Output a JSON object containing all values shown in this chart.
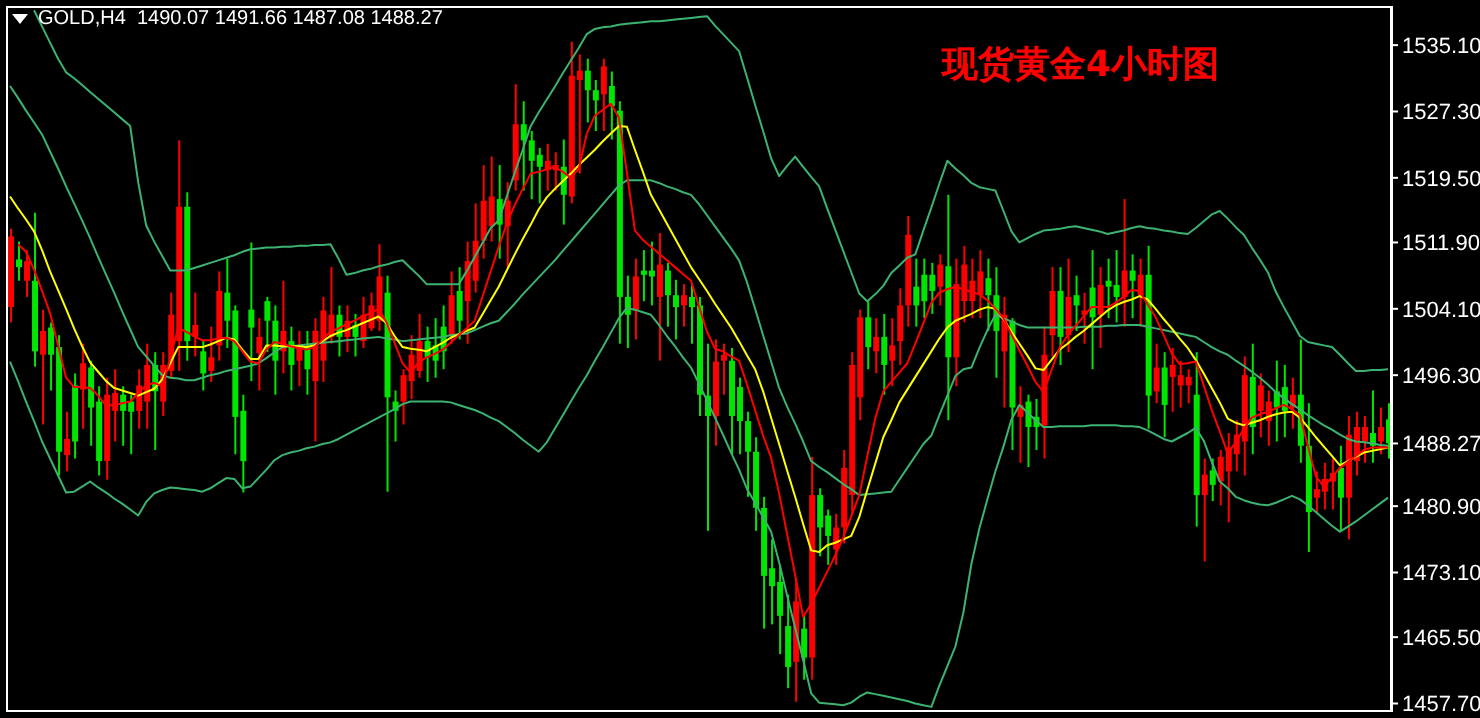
{
  "chart_data": {
    "type": "candlestick",
    "title": "现货黄金4小时图",
    "subtitle": "GOLD,H4  1490.07 1491.66 1487.08 1488.27",
    "categories": [
      null,
      null,
      null,
      null,
      null,
      null,
      null,
      null,
      null,
      null,
      null,
      null,
      null,
      null,
      null,
      null,
      null,
      null,
      null,
      null,
      null,
      null,
      null,
      null,
      null,
      null,
      null,
      null,
      null,
      null,
      null,
      null,
      null,
      null,
      null,
      null,
      null,
      null,
      null,
      null,
      null,
      null,
      null,
      null,
      null,
      null,
      null,
      null,
      null,
      null,
      null,
      null,
      null,
      null,
      null,
      null,
      null,
      null,
      null,
      null,
      null,
      null,
      null,
      null,
      null,
      null,
      null,
      null,
      null,
      null,
      null,
      null,
      null,
      null,
      null,
      null,
      null,
      null,
      null,
      null,
      null,
      null,
      null,
      null,
      null,
      null,
      null,
      null,
      null,
      null,
      null,
      null,
      null,
      null,
      null,
      null,
      null,
      null,
      null,
      null,
      null,
      null,
      null,
      null,
      null,
      null,
      null,
      null,
      null,
      null,
      null,
      null,
      null,
      null,
      null,
      null,
      null,
      null,
      null,
      null,
      null,
      null,
      null,
      null,
      null,
      null,
      null,
      null,
      null,
      null,
      null,
      null,
      null,
      null,
      null,
      null,
      null,
      null,
      null,
      null,
      null,
      null,
      null,
      null,
      null,
      null,
      null,
      null,
      null,
      null,
      null,
      null,
      null,
      null,
      null,
      null,
      null,
      null,
      null,
      null,
      null,
      null,
      null,
      null,
      null,
      null,
      null,
      null,
      null,
      null,
      null,
      null,
      null
    ],
    "ohlc": [
      [
        1512.6,
        1513.5,
        1502.5,
        1504.3
      ],
      [
        1509.0,
        1512.0,
        1507.4,
        1509.9
      ],
      [
        1509.7,
        1511.0,
        1505.5,
        1507.4
      ],
      [
        1499.1,
        1515.4,
        1497.3,
        1507.4
      ],
      [
        1501.5,
        1504.0,
        1490.5,
        1498.7
      ],
      [
        1498.7,
        1502.5,
        1494.5,
        1501.9
      ],
      [
        1487.3,
        1501.0,
        1484.5,
        1499.6
      ],
      [
        1488.8,
        1492.0,
        1485.0,
        1486.9
      ],
      [
        1488.5,
        1496.5,
        1486.5,
        1495.1
      ],
      [
        1497.7,
        1500.0,
        1490.0,
        1494.6
      ],
      [
        1492.5,
        1498.0,
        1488.0,
        1497.2
      ],
      [
        1486.2,
        1495.0,
        1484.5,
        1493.2
      ],
      [
        1494.0,
        1496.0,
        1484.0,
        1486.2
      ],
      [
        1494.2,
        1497.0,
        1488.5,
        1492.1
      ],
      [
        1492.1,
        1495.0,
        1488.0,
        1494.0
      ],
      [
        1492.0,
        1494.0,
        1487.0,
        1493.2
      ],
      [
        1495.1,
        1497.0,
        1490.0,
        1492.1
      ],
      [
        1497.5,
        1500.0,
        1490.0,
        1493.2
      ],
      [
        1494.4,
        1499.0,
        1487.5,
        1497.5
      ],
      [
        1497.5,
        1499.0,
        1491.5,
        1493.2
      ],
      [
        1503.4,
        1506.0,
        1496.0,
        1496.8
      ],
      [
        1516.1,
        1523.9,
        1496.8,
        1500.3
      ],
      [
        1500.3,
        1517.8,
        1498.0,
        1516.1
      ],
      [
        1502.2,
        1506.0,
        1498.5,
        1500.8
      ],
      [
        1496.5,
        1500.5,
        1494.5,
        1499.1
      ],
      [
        1498.4,
        1502.0,
        1495.5,
        1496.8
      ],
      [
        1506.2,
        1508.5,
        1498.0,
        1499.8
      ],
      [
        1502.7,
        1510.0,
        1499.5,
        1506.0
      ],
      [
        1491.4,
        1504.5,
        1487.0,
        1503.9
      ],
      [
        1486.2,
        1494.0,
        1482.5,
        1492.1
      ],
      [
        1501.9,
        1511.9,
        1495.6,
        1504.0
      ],
      [
        1500.8,
        1503.0,
        1494.5,
        1498.9
      ],
      [
        1502.7,
        1505.5,
        1499.0,
        1505.0
      ],
      [
        1498.0,
        1504.5,
        1494.0,
        1502.7
      ],
      [
        1501.5,
        1507.4,
        1496.5,
        1499.1
      ],
      [
        1497.5,
        1502.0,
        1494.5,
        1500.3
      ],
      [
        1499.6,
        1501.5,
        1495.0,
        1498.0
      ],
      [
        1497.0,
        1501.5,
        1494.0,
        1499.6
      ],
      [
        1501.5,
        1503.0,
        1488.5,
        1495.6
      ],
      [
        1503.9,
        1505.5,
        1495.5,
        1498.0
      ],
      [
        1503.4,
        1509.0,
        1500.0,
        1500.8
      ],
      [
        1500.8,
        1504.5,
        1498.5,
        1503.4
      ],
      [
        1502.7,
        1504.5,
        1499.0,
        1500.8
      ],
      [
        1500.8,
        1503.5,
        1498.5,
        1502.2
      ],
      [
        1503.4,
        1505.5,
        1499.5,
        1500.3
      ],
      [
        1504.5,
        1506.0,
        1501.5,
        1501.8
      ],
      [
        1507.9,
        1511.7,
        1501.5,
        1502.7
      ],
      [
        1493.7,
        1508.0,
        1482.6,
        1506.0
      ],
      [
        1492.1,
        1494.5,
        1488.5,
        1493.2
      ],
      [
        1496.3,
        1497.0,
        1490.5,
        1493.2
      ],
      [
        1498.7,
        1501.0,
        1493.5,
        1495.6
      ],
      [
        1500.3,
        1503.5,
        1496.0,
        1496.8
      ],
      [
        1498.4,
        1502.0,
        1495.5,
        1500.3
      ],
      [
        1498.0,
        1503.0,
        1496.0,
        1499.8
      ],
      [
        1499.1,
        1504.5,
        1497.0,
        1502.0
      ],
      [
        1505.7,
        1508.5,
        1500.0,
        1501.0
      ],
      [
        1502.7,
        1509.0,
        1500.5,
        1506.2
      ],
      [
        1509.7,
        1512.0,
        1500.0,
        1505.0
      ],
      [
        1512.1,
        1516.5,
        1506.0,
        1507.4
      ],
      [
        1516.8,
        1521.0,
        1510.0,
        1512.1
      ],
      [
        1517.3,
        1522.0,
        1512.0,
        1513.8
      ],
      [
        1514.0,
        1521.0,
        1510.0,
        1517.0
      ],
      [
        1516.8,
        1519.0,
        1509.0,
        1513.8
      ],
      [
        1525.8,
        1530.5,
        1518.0,
        1519.2
      ],
      [
        1523.9,
        1528.5,
        1518.0,
        1525.8
      ],
      [
        1521.5,
        1525.0,
        1517.0,
        1523.9
      ],
      [
        1520.8,
        1523.0,
        1516.5,
        1522.2
      ],
      [
        1521.5,
        1523.5,
        1518.0,
        1520.4
      ],
      [
        1521.0,
        1522.5,
        1518.0,
        1520.4
      ],
      [
        1517.5,
        1524.0,
        1514.0,
        1520.8
      ],
      [
        1531.5,
        1535.5,
        1516.5,
        1517.3
      ],
      [
        1532.1,
        1534.0,
        1520.0,
        1531.0
      ],
      [
        1529.8,
        1533.5,
        1526.0,
        1532.1
      ],
      [
        1528.6,
        1531.0,
        1525.0,
        1529.8
      ],
      [
        1532.6,
        1533.5,
        1525.0,
        1529.3
      ],
      [
        1527.9,
        1532.0,
        1524.0,
        1530.3
      ],
      [
        1505.5,
        1528.5,
        1500.0,
        1527.4
      ],
      [
        1503.4,
        1508.0,
        1499.5,
        1505.5
      ],
      [
        1507.9,
        1510.0,
        1500.5,
        1503.9
      ],
      [
        1508.1,
        1511.0,
        1505.0,
        1508.6
      ],
      [
        1507.9,
        1512.0,
        1504.5,
        1508.6
      ],
      [
        1509.3,
        1513.0,
        1498.0,
        1505.5
      ],
      [
        1505.7,
        1509.5,
        1502.0,
        1508.6
      ],
      [
        1504.3,
        1507.5,
        1500.5,
        1505.7
      ],
      [
        1505.7,
        1507.0,
        1502.0,
        1504.5
      ],
      [
        1504.3,
        1507.0,
        1500.0,
        1505.5
      ],
      [
        1494.0,
        1505.5,
        1491.5,
        1504.5
      ],
      [
        1491.5,
        1500.0,
        1478.0,
        1493.9
      ],
      [
        1497.9,
        1500.5,
        1488.0,
        1491.5
      ],
      [
        1498.7,
        1500.0,
        1494.0,
        1498.0
      ],
      [
        1491.5,
        1499.5,
        1487.0,
        1498.0
      ],
      [
        1490.9,
        1496.0,
        1487.0,
        1494.9
      ],
      [
        1487.3,
        1492.0,
        1482.0,
        1490.9
      ],
      [
        1480.7,
        1489.0,
        1478.0,
        1487.3
      ],
      [
        1472.7,
        1482.0,
        1466.5,
        1480.7
      ],
      [
        1471.5,
        1477.0,
        1467.0,
        1473.6
      ],
      [
        1468.0,
        1474.0,
        1463.5,
        1472.0
      ],
      [
        1462.0,
        1470.5,
        1459.5,
        1466.8
      ],
      [
        1469.7,
        1472.5,
        1457.9,
        1462.6
      ],
      [
        1463.1,
        1468.0,
        1460.5,
        1466.5
      ],
      [
        1482.2,
        1486.7,
        1460.5,
        1463.1
      ],
      [
        1478.4,
        1483.0,
        1475.0,
        1482.2
      ],
      [
        1477.4,
        1480.5,
        1474.0,
        1479.8
      ],
      [
        1478.4,
        1480.0,
        1474.0,
        1475.8
      ],
      [
        1485.4,
        1487.5,
        1476.5,
        1478.4
      ],
      [
        1497.5,
        1499.0,
        1480.0,
        1482.2
      ],
      [
        1503.1,
        1504.0,
        1491.0,
        1493.7
      ],
      [
        1499.6,
        1505.0,
        1497.0,
        1503.1
      ],
      [
        1500.8,
        1503.0,
        1496.5,
        1499.1
      ],
      [
        1497.5,
        1503.5,
        1494.0,
        1500.8
      ],
      [
        1499.8,
        1503.0,
        1495.0,
        1498.0
      ],
      [
        1504.5,
        1506.5,
        1497.5,
        1500.3
      ],
      [
        1512.8,
        1515.0,
        1502.0,
        1504.5
      ],
      [
        1504.5,
        1510.0,
        1502.0,
        1506.7
      ],
      [
        1505.0,
        1510.0,
        1503.0,
        1508.1
      ],
      [
        1506.2,
        1509.5,
        1503.5,
        1508.1
      ],
      [
        1509.3,
        1510.5,
        1504.5,
        1506.7
      ],
      [
        1498.4,
        1517.5,
        1491.0,
        1509.1
      ],
      [
        1507.0,
        1510.0,
        1495.0,
        1498.4
      ],
      [
        1509.3,
        1511.5,
        1502.5,
        1505.0
      ],
      [
        1507.4,
        1510.0,
        1503.0,
        1505.0
      ],
      [
        1508.5,
        1511.0,
        1503.0,
        1505.7
      ],
      [
        1505.7,
        1510.0,
        1501.5,
        1507.7
      ],
      [
        1501.5,
        1509.0,
        1496.0,
        1505.7
      ],
      [
        1503.4,
        1505.5,
        1492.5,
        1499.1
      ],
      [
        1492.5,
        1503.0,
        1487.5,
        1502.7
      ],
      [
        1492.8,
        1495.0,
        1486.0,
        1491.4
      ],
      [
        1490.2,
        1494.0,
        1485.5,
        1493.2
      ],
      [
        1490.2,
        1493.5,
        1487.5,
        1491.4
      ],
      [
        1498.7,
        1502.0,
        1486.5,
        1490.4
      ],
      [
        1506.2,
        1509.0,
        1498.5,
        1501.0
      ],
      [
        1500.8,
        1509.0,
        1497.5,
        1506.2
      ],
      [
        1505.5,
        1510.0,
        1499.0,
        1501.0
      ],
      [
        1504.5,
        1508.0,
        1501.5,
        1505.7
      ],
      [
        1503.9,
        1506.0,
        1500.0,
        1503.4
      ],
      [
        1503.1,
        1511.0,
        1497.0,
        1506.6
      ],
      [
        1506.9,
        1509.0,
        1499.5,
        1503.4
      ],
      [
        1506.7,
        1510.0,
        1503.0,
        1507.4
      ],
      [
        1505.5,
        1511.0,
        1502.5,
        1506.9
      ],
      [
        1508.6,
        1517.0,
        1502.0,
        1505.5
      ],
      [
        1507.4,
        1510.5,
        1503.0,
        1508.6
      ],
      [
        1508.1,
        1510.0,
        1502.0,
        1505.7
      ],
      [
        1493.9,
        1511.5,
        1490.0,
        1508.1
      ],
      [
        1497.2,
        1500.0,
        1493.0,
        1494.4
      ],
      [
        1492.8,
        1499.0,
        1489.0,
        1497.2
      ],
      [
        1497.5,
        1499.5,
        1492.0,
        1496.1
      ],
      [
        1496.3,
        1498.0,
        1492.5,
        1495.1
      ],
      [
        1496.1,
        1497.0,
        1493.0,
        1495.1
      ],
      [
        1482.2,
        1499.0,
        1478.5,
        1494.0
      ],
      [
        1484.6,
        1486.5,
        1474.4,
        1482.2
      ],
      [
        1483.4,
        1486.5,
        1481.5,
        1485.1
      ],
      [
        1486.7,
        1487.5,
        1481.0,
        1483.8
      ],
      [
        1487.8,
        1489.5,
        1479.0,
        1485.0
      ],
      [
        1489.3,
        1491.0,
        1485.0,
        1487.0
      ],
      [
        1496.3,
        1498.5,
        1484.5,
        1488.5
      ],
      [
        1490.2,
        1500.0,
        1487.0,
        1496.1
      ],
      [
        1495.1,
        1496.5,
        1489.0,
        1492.1
      ],
      [
        1493.2,
        1494.5,
        1488.0,
        1490.9
      ],
      [
        1492.5,
        1498.0,
        1488.5,
        1494.4
      ],
      [
        1492.1,
        1497.5,
        1489.0,
        1494.9
      ],
      [
        1494.0,
        1496.0,
        1490.0,
        1492.5
      ],
      [
        1488.0,
        1500.5,
        1486.0,
        1494.0
      ],
      [
        1480.2,
        1493.0,
        1475.5,
        1488.0
      ],
      [
        1482.9,
        1485.0,
        1480.0,
        1481.9
      ],
      [
        1484.1,
        1486.0,
        1480.5,
        1482.6
      ],
      [
        1484.8,
        1486.5,
        1480.5,
        1483.8
      ],
      [
        1481.9,
        1488.0,
        1478.0,
        1485.4
      ],
      [
        1489.3,
        1491.5,
        1477.0,
        1481.9
      ],
      [
        1490.2,
        1492.0,
        1484.5,
        1486.2
      ],
      [
        1490.2,
        1491.5,
        1486.0,
        1488.5
      ],
      [
        1488.0,
        1494.5,
        1486.0,
        1489.5
      ],
      [
        1490.2,
        1492.5,
        1487.0,
        1488.5
      ],
      [
        1488.3,
        1493.0,
        1486.5,
        1491.1
      ]
    ],
    "series": [
      {
        "type": "line",
        "color": "#3cb371",
        "values": [
          null,
          null,
          null,
          1539.2,
          1537.3,
          1535.4,
          1533.5,
          1531.9,
          1531.2,
          1530.4,
          1529.6,
          1528.8,
          1528.0,
          1527.2,
          1526.4,
          1525.6,
          1519.0,
          1513.9,
          1512.0,
          1510.3,
          1508.6,
          1508.6,
          1508.6,
          1508.9,
          1509.2,
          1509.5,
          1509.8,
          1510.1,
          1510.4,
          1510.8,
          1511.1,
          1511.2,
          1511.3,
          1511.3,
          1511.4,
          1511.4,
          1511.5,
          1511.5,
          1511.6,
          1511.6,
          1511.7,
          1510.0,
          1508.1,
          1508.3,
          1508.6,
          1508.8,
          1509.1,
          1509.3,
          1509.6,
          1509.8,
          1508.9,
          1508.0,
          1507.0,
          1507.0,
          1507.0,
          1507.0,
          1507.0,
          1508.5,
          1510.2,
          1511.9,
          1513.6,
          1514.5,
          1517.3,
          1520.1,
          1522.8,
          1525.6,
          1527.2,
          1528.7,
          1530.2,
          1531.8,
          1533.3,
          1534.8,
          1536.4,
          1537.0,
          1537.2,
          1537.3,
          1537.5,
          1537.6,
          1537.7,
          1537.8,
          1537.9,
          1537.9,
          1538.0,
          1538.1,
          1538.2,
          1538.3,
          1538.4,
          1538.5,
          1537.4,
          1536.4,
          1535.4,
          1534.4,
          1531.3,
          1528.1,
          1525.0,
          1521.8,
          1519.7,
          1520.9,
          1522.0,
          1520.8,
          1519.6,
          1518.5,
          1515.9,
          1513.4,
          1510.9,
          1508.4,
          1505.9,
          1505.0,
          1505.8,
          1506.8,
          1508.3,
          1509.2,
          1510.1,
          1510.5,
          1513.3,
          1516.0,
          1518.8,
          1521.5,
          1520.6,
          1519.8,
          1518.9,
          1518.4,
          1518.2,
          1518.0,
          1515.6,
          1513.2,
          1511.9,
          1512.4,
          1512.9,
          1513.3,
          1513.4,
          1513.5,
          1513.7,
          1513.8,
          1513.6,
          1513.4,
          1513.2,
          1512.9,
          1513.1,
          1513.3,
          1513.6,
          1513.8,
          1513.6,
          1513.5,
          1513.3,
          1513.2,
          1513.0,
          1512.9,
          1513.6,
          1514.4,
          1515.2,
          1515.6,
          1514.7,
          1513.7,
          1512.8,
          1511.3,
          1509.9,
          1508.4,
          1506.1,
          1504.3,
          1502.6,
          1500.9,
          1500.2,
          1500.0,
          1499.8,
          1499.6,
          1498.7,
          1497.7,
          1496.8,
          1496.8,
          1496.9,
          1496.9,
          1497.0
        ]
      },
      {
        "type": "line",
        "color": "#3cb371",
        "values": [
          1530.3,
          1528.9,
          1527.4,
          1526.0,
          1524.6,
          1522.6,
          1520.6,
          1518.5,
          1516.5,
          1514.5,
          1512.4,
          1510.2,
          1508.1,
          1506.0,
          1503.8,
          1501.7,
          1499.6,
          1498.5,
          1497.4,
          1496.3,
          1496.0,
          1495.9,
          1495.7,
          1495.7,
          1496.0,
          1496.3,
          1496.5,
          1496.8,
          1497.0,
          1497.2,
          1497.4,
          1497.7,
          1498.3,
          1499.0,
          1499.6,
          1499.7,
          1499.8,
          1499.9,
          1500.0,
          1500.1,
          1500.2,
          1500.3,
          1500.4,
          1500.5,
          1500.6,
          1500.7,
          1500.8,
          1500.6,
          1500.5,
          1500.3,
          1500.4,
          1500.5,
          1500.6,
          1500.7,
          1500.8,
          1501.0,
          1501.1,
          1501.2,
          1501.6,
          1502.0,
          1502.4,
          1502.7,
          1503.7,
          1504.7,
          1505.8,
          1506.8,
          1507.8,
          1508.8,
          1509.8,
          1510.9,
          1512.0,
          1513.1,
          1514.2,
          1515.3,
          1516.4,
          1517.5,
          1518.6,
          1519.2,
          1519.2,
          1519.2,
          1519.2,
          1518.9,
          1518.5,
          1518.2,
          1517.8,
          1517.5,
          1516.4,
          1515.1,
          1513.8,
          1512.5,
          1511.2,
          1509.8,
          1507.2,
          1504.1,
          1501.0,
          1497.9,
          1494.8,
          1492.6,
          1490.6,
          1488.5,
          1486.2,
          1485.5,
          1484.9,
          1484.2,
          1483.5,
          1482.9,
          1482.2,
          1482.3,
          1482.4,
          1482.5,
          1482.6,
          1484.0,
          1485.4,
          1486.8,
          1488.2,
          1489.2,
          1491.6,
          1493.9,
          1496.2,
          1497.0,
          1497.2,
          1499.5,
          1501.6,
          1503.4,
          1503.0,
          1502.6,
          1502.2,
          1501.9,
          1501.9,
          1501.9,
          1501.9,
          1501.9,
          1501.9,
          1501.9,
          1502.0,
          1502.0,
          1502.0,
          1502.1,
          1502.1,
          1502.2,
          1502.2,
          1502.2,
          1502.0,
          1501.8,
          1501.6,
          1501.4,
          1501.2,
          1501.0,
          1500.8,
          1500.2,
          1499.6,
          1499.1,
          1498.7,
          1498.0,
          1497.4,
          1496.7,
          1496.0,
          1495.2,
          1494.3,
          1493.6,
          1492.9,
          1492.3,
          1491.6,
          1491.0,
          1490.4,
          1489.9,
          1489.3,
          1488.8,
          1488.5,
          1488.4,
          1488.3,
          1488.1,
          1488.0
        ]
      },
      {
        "type": "line",
        "color": "#3cb371",
        "values": [
          1497.9,
          1495.6,
          1493.2,
          1490.9,
          1488.5,
          1486.5,
          1484.5,
          1482.5,
          1482.6,
          1483.2,
          1483.8,
          1483.1,
          1482.5,
          1481.8,
          1481.2,
          1480.5,
          1479.8,
          1481.4,
          1482.4,
          1482.8,
          1483.1,
          1483.0,
          1482.9,
          1482.8,
          1482.6,
          1483.0,
          1483.6,
          1484.2,
          1484.1,
          1483.0,
          1483.2,
          1484.2,
          1485.2,
          1486.3,
          1486.9,
          1487.2,
          1487.4,
          1487.7,
          1487.9,
          1488.2,
          1488.4,
          1488.8,
          1489.3,
          1489.8,
          1490.3,
          1490.8,
          1491.3,
          1491.8,
          1492.3,
          1492.9,
          1493.2,
          1493.2,
          1493.2,
          1493.2,
          1493.2,
          1493.1,
          1492.8,
          1492.5,
          1492.2,
          1491.8,
          1491.3,
          1490.9,
          1490.2,
          1489.5,
          1488.7,
          1488.0,
          1487.3,
          1488.4,
          1490.0,
          1491.6,
          1493.2,
          1494.8,
          1496.3,
          1498.0,
          1499.6,
          1501.3,
          1503.0,
          1504.2,
          1504.0,
          1503.7,
          1503.4,
          1502.2,
          1500.9,
          1499.7,
          1498.4,
          1497.2,
          1495.3,
          1493.3,
          1491.3,
          1489.3,
          1487.2,
          1485.2,
          1482.9,
          1481.3,
          1479.6,
          1477.9,
          1474.3,
          1470.4,
          1466.6,
          1462.8,
          1458.9,
          1457.8,
          1457.7,
          1457.6,
          1457.5,
          1457.8,
          1458.5,
          1459.0,
          1458.8,
          1458.6,
          1458.4,
          1458.2,
          1458.0,
          1457.7,
          1457.5,
          1457.3,
          1459.8,
          1462.1,
          1464.4,
          1468.4,
          1474.1,
          1478.3,
          1481.7,
          1485.0,
          1487.9,
          1491.1,
          1492.8,
          1491.9,
          1491.0,
          1490.2,
          1490.2,
          1490.3,
          1490.3,
          1490.3,
          1490.3,
          1490.4,
          1490.4,
          1490.4,
          1490.4,
          1490.3,
          1490.3,
          1490.2,
          1489.8,
          1489.3,
          1488.8,
          1488.5,
          1489.0,
          1489.5,
          1490.1,
          1488.6,
          1486.1,
          1483.8,
          1483.0,
          1482.0,
          1481.6,
          1481.3,
          1481.1,
          1481.0,
          1481.3,
          1481.7,
          1482.1,
          1481.7,
          1481.0,
          1480.2,
          1479.4,
          1478.6,
          1477.9,
          1478.5,
          1479.1,
          1479.8,
          1480.5,
          1481.2,
          1481.9
        ]
      },
      {
        "type": "line",
        "color": "#ffff00",
        "values": [
          1517.3,
          1515.9,
          1514.6,
          1513.2,
          1511.0,
          1508.5,
          1506.3,
          1504.1,
          1501.8,
          1499.7,
          1497.8,
          1496.7,
          1495.6,
          1494.8,
          1494.5,
          1494.2,
          1493.9,
          1494.3,
          1494.7,
          1495.8,
          1497.7,
          1499.6,
          1499.6,
          1499.6,
          1499.6,
          1499.9,
          1500.3,
          1500.7,
          1500.5,
          1499.3,
          1498.2,
          1498.2,
          1499.8,
          1499.8,
          1499.7,
          1499.7,
          1499.7,
          1499.6,
          1499.8,
          1500.3,
          1500.9,
          1501.3,
          1501.6,
          1502.0,
          1502.4,
          1502.8,
          1503.2,
          1502.4,
          1500.9,
          1499.6,
          1499.4,
          1499.3,
          1499.1,
          1499.6,
          1500.1,
          1500.7,
          1501.1,
          1501.5,
          1501.9,
          1503.5,
          1505.1,
          1506.7,
          1508.6,
          1510.5,
          1512.3,
          1514.0,
          1515.8,
          1517.2,
          1518.2,
          1519.1,
          1520.0,
          1521.0,
          1521.9,
          1522.8,
          1523.8,
          1524.7,
          1525.6,
          1525.5,
          1522.8,
          1520.2,
          1517.5,
          1515.8,
          1514.1,
          1512.4,
          1510.7,
          1509.0,
          1507.6,
          1506.2,
          1504.7,
          1503.3,
          1501.9,
          1500.3,
          1498.6,
          1497.0,
          1494.4,
          1491.3,
          1488.2,
          1485.1,
          1482.0,
          1478.8,
          1475.7,
          1475.5,
          1476.3,
          1476.6,
          1477.0,
          1477.4,
          1479.6,
          1482.8,
          1485.9,
          1489.0,
          1491.0,
          1493.1,
          1494.6,
          1496.1,
          1497.6,
          1499.1,
          1500.6,
          1501.9,
          1502.7,
          1503.1,
          1503.5,
          1504.0,
          1504.3,
          1504.1,
          1502.9,
          1501.4,
          1500.0,
          1498.6,
          1497.1,
          1496.9,
          1498.1,
          1499.3,
          1500.0,
          1500.8,
          1501.5,
          1502.3,
          1503.1,
          1503.9,
          1504.5,
          1504.9,
          1505.2,
          1505.6,
          1505.2,
          1504.1,
          1502.9,
          1501.8,
          1500.6,
          1499.5,
          1498.1,
          1496.5,
          1494.8,
          1493.1,
          1491.2,
          1490.7,
          1490.4,
          1490.7,
          1491.0,
          1491.4,
          1491.7,
          1491.9,
          1492.0,
          1491.3,
          1490.2,
          1489.0,
          1487.9,
          1486.8,
          1485.7,
          1486.2,
          1486.7,
          1487.2,
          1487.4,
          1487.6,
          1487.8
        ]
      },
      {
        "type": "line",
        "color": "#ff0000",
        "values": [
          null,
          1511.7,
          1510.8,
          1508.7,
          1506.2,
          1503.6,
          1499.8,
          1496.0,
          1494.9,
          1494.9,
          1494.8,
          1493.9,
          1492.7,
          1492.8,
          1493.0,
          1493.2,
          1494.2,
          1495.1,
          1495.4,
          1495.0,
          1498.3,
          1501.9,
          1501.4,
          1500.9,
          1500.4,
          1500.4,
          1500.6,
          1500.7,
          1500.3,
          1499.1,
          1497.9,
          1497.7,
          1499.3,
          1500.2,
          1500.0,
          1499.7,
          1499.5,
          1499.3,
          1499.6,
          1500.5,
          1501.4,
          1501.8,
          1502.3,
          1502.7,
          1503.2,
          1503.6,
          1504.1,
          1502.5,
          1500.1,
          1497.7,
          1496.6,
          1497.8,
          1498.4,
          1498.8,
          1499.3,
          1500.1,
          1501.0,
          1501.8,
          1502.7,
          1505.6,
          1508.5,
          1511.4,
          1514.1,
          1516.3,
          1518.2,
          1520.0,
          1520.2,
          1520.5,
          1520.8,
          1520.2,
          1519.5,
          1520.6,
          1524.7,
          1526.8,
          1527.5,
          1528.2,
          1526.6,
          1520.1,
          1513.3,
          1512.2,
          1511.4,
          1510.6,
          1509.8,
          1509.0,
          1508.2,
          1507.4,
          1504.4,
          1501.4,
          1499.4,
          1499.1,
          1498.5,
          1498.0,
          1495.2,
          1492.2,
          1489.2,
          1486.6,
          1482.4,
          1477.6,
          1472.8,
          1467.9,
          1469.4,
          1471.3,
          1473.2,
          1475.1,
          1477.2,
          1479.7,
          1482.2,
          1486.7,
          1491.2,
          1494.4,
          1495.5,
          1496.6,
          1497.7,
          1500.0,
          1502.4,
          1504.8,
          1506.0,
          1506.4,
          1506.7,
          1506.4,
          1506.1,
          1505.8,
          1505.1,
          1504.1,
          1503.0,
          1501.1,
          1499.2,
          1497.4,
          1495.5,
          1494.3,
          1496.9,
          1499.5,
          1501.0,
          1502.1,
          1503.2,
          1504.3,
          1504.3,
          1504.3,
          1504.8,
          1505.5,
          1506.3,
          1506.2,
          1504.6,
          1503.1,
          1501.0,
          1498.9,
          1497.6,
          1497.7,
          1497.9,
          1495.1,
          1492.2,
          1489.7,
          1487.1,
          1488.4,
          1490.0,
          1491.3,
          1491.7,
          1492.0,
          1492.4,
          1492.8,
          1492.3,
          1491.6,
          1488.0,
          1484.4,
          1483.2,
          1484.3,
          1485.4,
          1486.1,
          1486.8,
          1487.5,
          1487.8,
          1487.8,
          1487.8
        ]
      }
    ],
    "ylim": [
      1456.7,
      1539.7
    ],
    "yticks": [
      {
        "value": 1535.1,
        "label": "1535.10"
      },
      {
        "value": 1527.3,
        "label": "1527.30"
      },
      {
        "value": 1519.5,
        "label": "1519.50"
      },
      {
        "value": 1511.9,
        "label": "1511.90"
      },
      {
        "value": 1504.1,
        "label": "1504.10"
      },
      {
        "value": 1496.3,
        "label": "1496.30"
      },
      {
        "value": 1488.27,
        "label": "1488.27"
      },
      {
        "value": 1480.9,
        "label": "1480.90"
      },
      {
        "value": 1473.1,
        "label": "1473.10"
      },
      {
        "value": 1465.5,
        "label": "1465.50"
      },
      {
        "value": 1457.7,
        "label": "1457.70"
      }
    ],
    "tick_labels": "y"
  }
}
